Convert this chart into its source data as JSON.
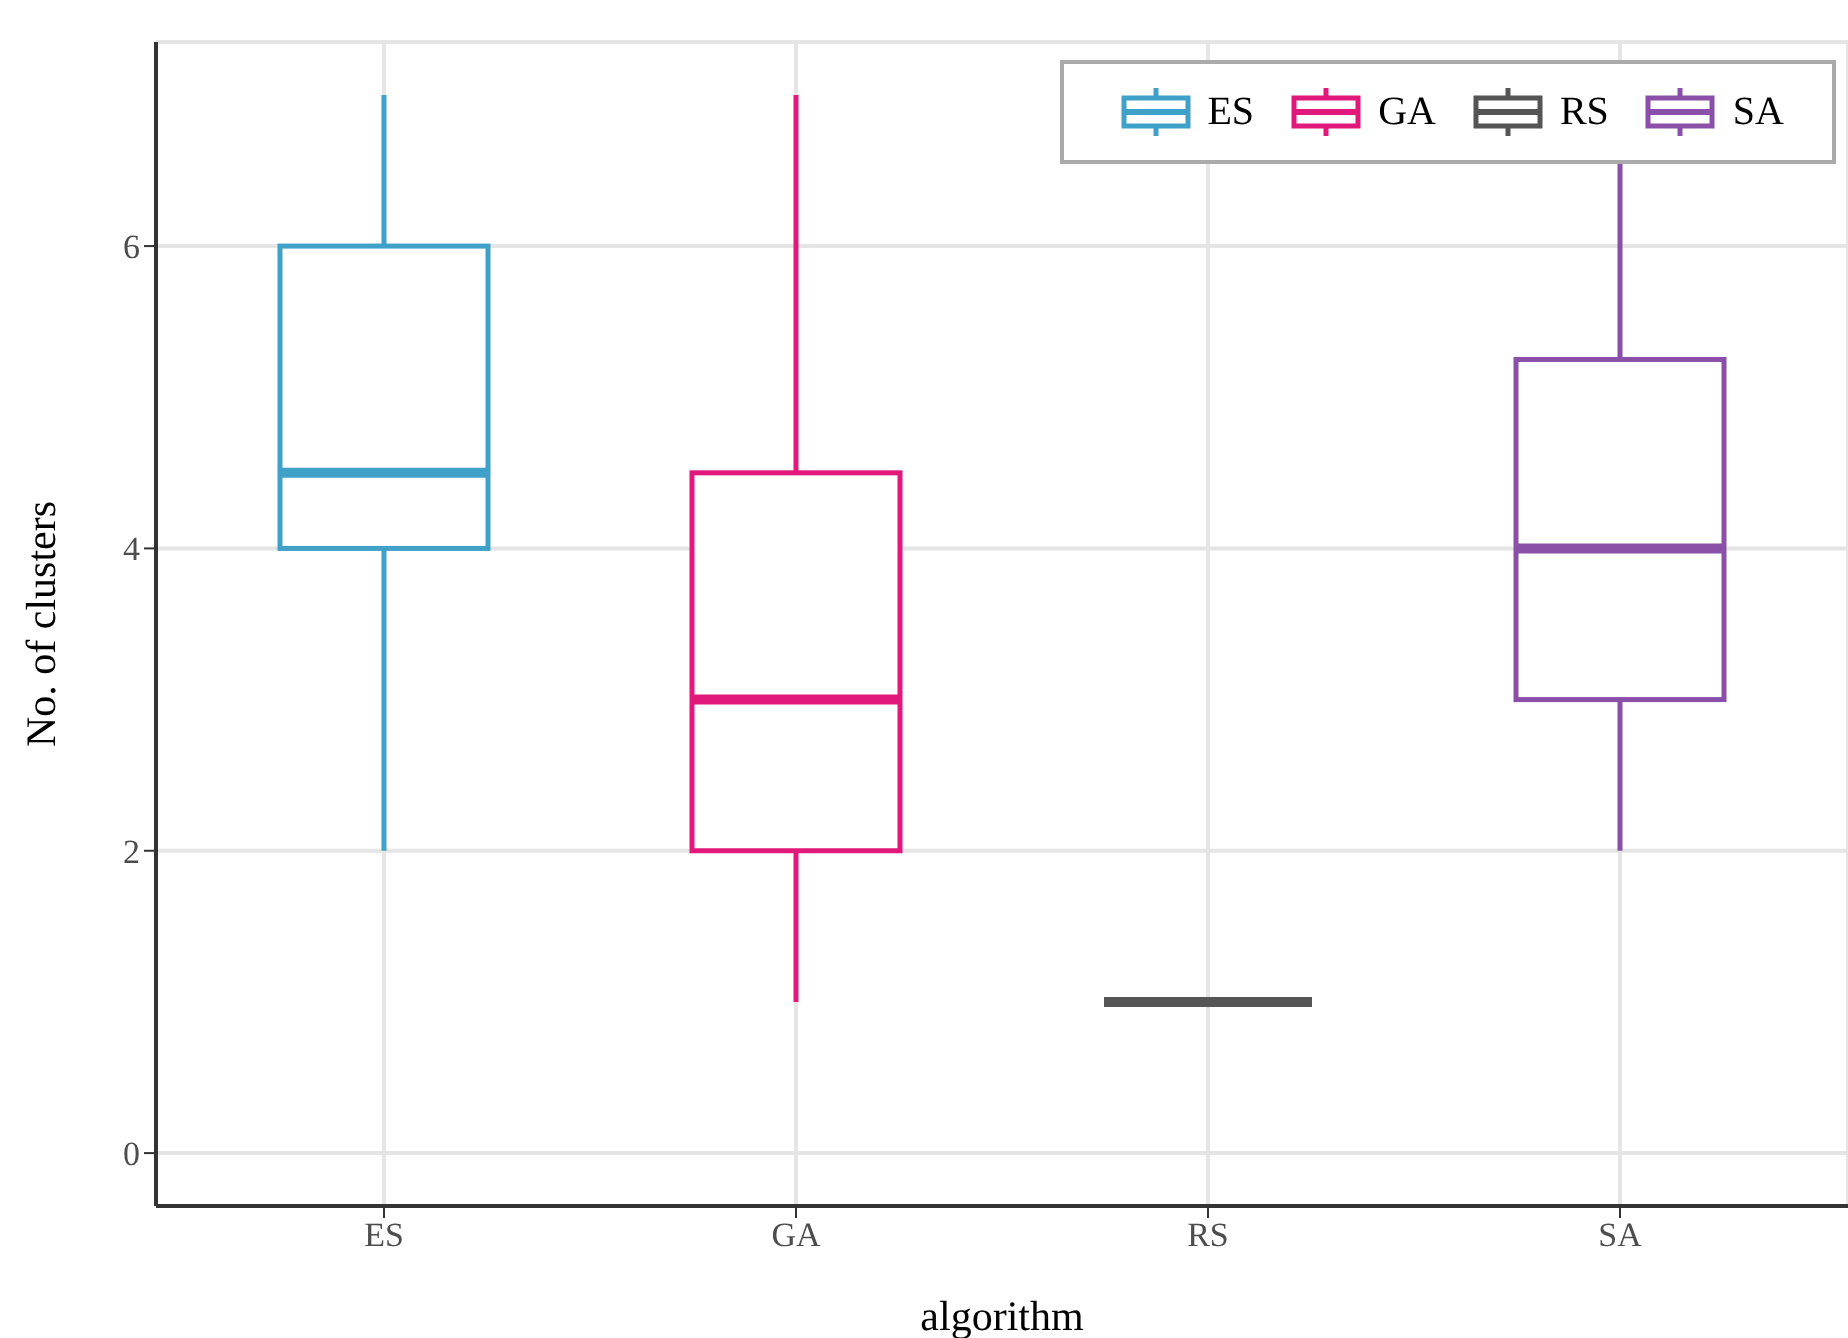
{
  "chart_data": {
    "type": "box",
    "xlabel": "algorithm",
    "ylabel": "No. of clusters",
    "categories": [
      "ES",
      "GA",
      "RS",
      "SA"
    ],
    "series": [
      {
        "name": "ES",
        "color": "#3fa0c8",
        "boxes": [
          {
            "low": 2,
            "q1": 4,
            "median": 4.5,
            "q3": 6,
            "high": 7
          },
          null,
          null,
          null
        ]
      },
      {
        "name": "GA",
        "color": "#e0197a",
        "boxes": [
          null,
          {
            "low": 1,
            "q1": 2,
            "median": 3,
            "q3": 4.5,
            "high": 7
          },
          null,
          null
        ]
      },
      {
        "name": "RS",
        "color": "#555555",
        "boxes": [
          null,
          null,
          {
            "low": 1,
            "q1": 1,
            "median": 1,
            "q3": 1,
            "high": 1
          },
          null
        ]
      },
      {
        "name": "SA",
        "color": "#8a4fa8",
        "boxes": [
          null,
          null,
          null,
          {
            "low": 2,
            "q1": 3,
            "median": 4,
            "q3": 5.25,
            "high": 7
          }
        ]
      }
    ],
    "ylim": [
      -0.35,
      7.35
    ],
    "yticks": [
      0,
      2,
      4,
      6
    ],
    "grid": true,
    "legend": "top right"
  }
}
